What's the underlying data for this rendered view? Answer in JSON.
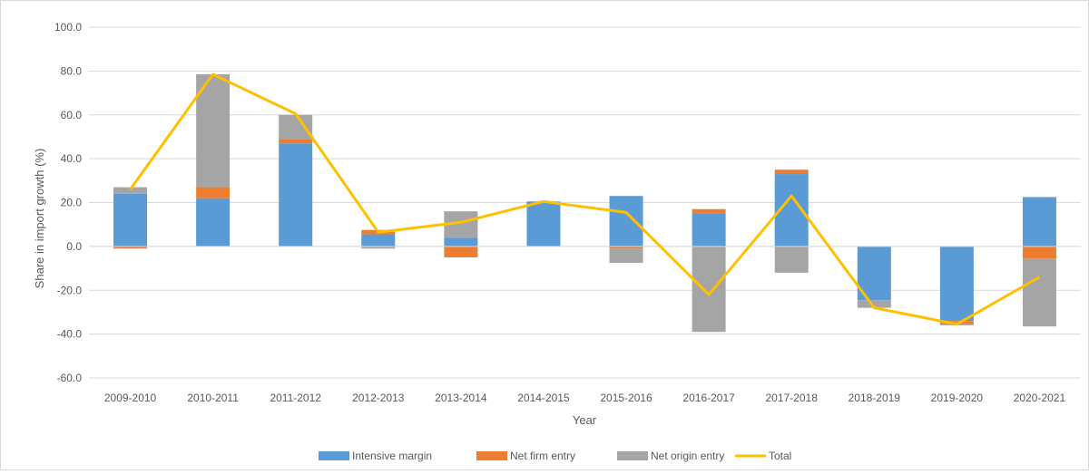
{
  "chart_data": {
    "type": "bar",
    "stacked": true,
    "title": "",
    "xlabel": "Year",
    "ylabel": "Share in import growth (%)",
    "ylim": [
      -60,
      100
    ],
    "yticks": [
      "-60.0",
      "-40.0",
      "-20.0",
      "0.0",
      "20.0",
      "40.0",
      "60.0",
      "80.0",
      "100.0"
    ],
    "grid": true,
    "legend_position": "bottom",
    "categories": [
      "2009-2010",
      "2010-2011",
      "2011-2012",
      "2012-2013",
      "2013-2014",
      "2014-2015",
      "2015-2016",
      "2016-2017",
      "2017-2018",
      "2018-2019",
      "2019-2020",
      "2020-2021"
    ],
    "series": [
      {
        "name": "Intensive margin",
        "kind": "bar",
        "color": "#5b9bd5",
        "values": [
          24,
          22,
          47,
          5.5,
          4,
          20.5,
          23,
          15,
          33,
          -24.5,
          -34,
          22.5
        ]
      },
      {
        "name": "Net firm entry",
        "kind": "bar",
        "color": "#ed7d31",
        "values": [
          -1,
          5,
          2,
          2,
          -5,
          0,
          -1,
          2,
          2,
          0,
          -1.5,
          -5.5
        ]
      },
      {
        "name": "Net origin entry",
        "kind": "bar",
        "color": "#a5a5a5",
        "values": [
          3,
          51.5,
          11,
          -1,
          12,
          0,
          -6.5,
          -39,
          -12,
          -3.5,
          -0.5,
          -31
        ]
      },
      {
        "name": "Total",
        "kind": "line",
        "color": "#ffc000",
        "values": [
          26,
          78.5,
          60.5,
          6.5,
          11,
          20.5,
          15.5,
          -22,
          23,
          -28,
          -35.5,
          -14
        ]
      }
    ]
  }
}
